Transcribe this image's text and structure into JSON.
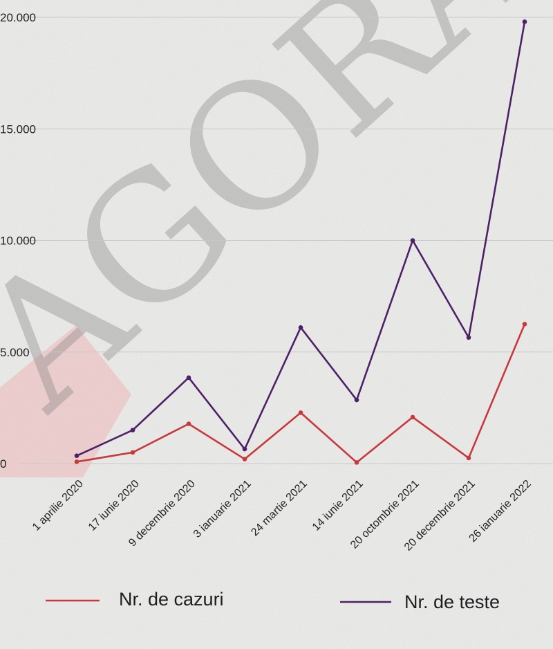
{
  "chart_data": {
    "type": "line",
    "title": "",
    "xlabel": "",
    "ylabel": "",
    "categories": [
      "1 aprilie 2020",
      "17 iunie 2020",
      "9 decembrie 2020",
      "3 ianuarie 2021",
      "24 martie 2021",
      "14 iunie 2021",
      "20 octombrie 2021",
      "20 decembrie 2021",
      "26 ianuarie 2022"
    ],
    "ylim": [
      0,
      20000
    ],
    "yticks": [
      0,
      5000,
      10000,
      15000,
      20000
    ],
    "ytick_labels": [
      "0",
      "5.000",
      "10.000",
      "15.000",
      "20.000"
    ],
    "grid": true,
    "legend_position": "bottom",
    "series": [
      {
        "name": "Nr. de cazuri",
        "color": "#c8383c",
        "values": [
          80,
          500,
          1780,
          200,
          2280,
          50,
          2080,
          250,
          6250
        ]
      },
      {
        "name": "Nr. de teste",
        "color": "#4e2167",
        "values": [
          350,
          1500,
          3850,
          650,
          6100,
          2850,
          10000,
          5650,
          19800
        ]
      }
    ]
  },
  "watermark": {
    "text": "AGORA",
    "logo_color": "#f08a8a"
  }
}
